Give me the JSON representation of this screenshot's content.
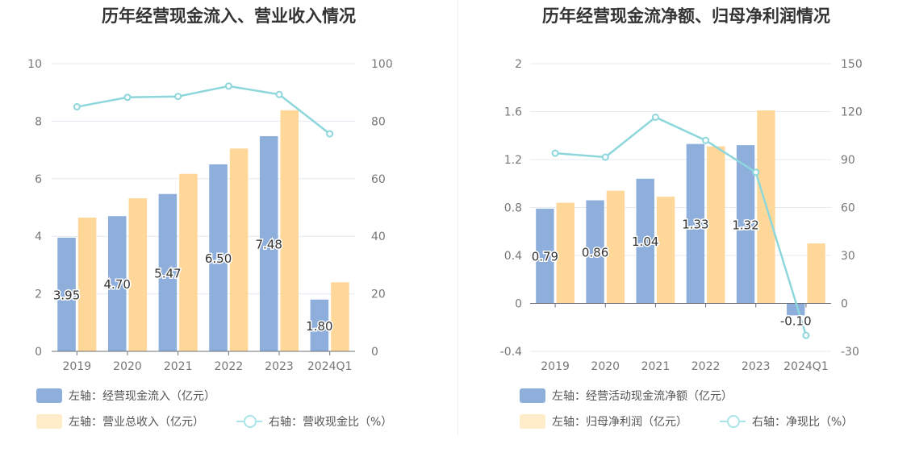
{
  "colors": {
    "bar_primary": "#8eaedc",
    "bar_secondary": "#ffd899",
    "line": "#8dd7dc",
    "legend_secondary": "#ffecc8",
    "legend_line": "#a9e4e9"
  },
  "chart_data": [
    {
      "type": "bar",
      "title": "历年经营现金流入、营业收入情况",
      "categories": [
        "2019",
        "2020",
        "2021",
        "2022",
        "2023",
        "2024Q1"
      ],
      "left_axis": {
        "min": 0,
        "max": 10,
        "ticks": [
          "0",
          "2",
          "4",
          "6",
          "8",
          "10"
        ]
      },
      "right_axis": {
        "min": 0,
        "max": 100,
        "ticks": [
          "0",
          "20",
          "40",
          "60",
          "80",
          "100"
        ]
      },
      "series": [
        {
          "name": "左轴：经营现金流入（亿元）",
          "axis": "left",
          "kind": "bar",
          "values": [
            3.95,
            4.7,
            5.47,
            6.5,
            7.48,
            1.8
          ],
          "labels": [
            "3.95",
            "4.70",
            "5.47",
            "6.50",
            "7.48",
            "1.80"
          ]
        },
        {
          "name": "左轴：营业总收入（亿元）",
          "axis": "left",
          "kind": "bar",
          "values": [
            4.65,
            5.32,
            6.17,
            7.05,
            8.38,
            2.4
          ]
        },
        {
          "name": "右轴：营收现金比（%）",
          "axis": "right",
          "kind": "line",
          "values": [
            85.0,
            88.3,
            88.6,
            92.2,
            89.3,
            75.6
          ]
        }
      ],
      "grid": true
    },
    {
      "type": "bar",
      "title": "历年经营现金流净额、归母净利润情况",
      "categories": [
        "2019",
        "2020",
        "2021",
        "2022",
        "2023",
        "2024Q1"
      ],
      "left_axis": {
        "min": -0.4,
        "max": 2,
        "ticks": [
          "-0.4",
          "0",
          "0.4",
          "0.8",
          "1.2",
          "1.6",
          "2"
        ]
      },
      "right_axis": {
        "min": -30,
        "max": 150,
        "ticks": [
          "-30",
          "0",
          "30",
          "60",
          "90",
          "120",
          "150"
        ]
      },
      "series": [
        {
          "name": "左轴：经营活动现金流净额（亿元）",
          "axis": "left",
          "kind": "bar",
          "values": [
            0.79,
            0.86,
            1.04,
            1.33,
            1.32,
            -0.1
          ],
          "labels": [
            "0.79",
            "0.86",
            "1.04",
            "1.33",
            "1.32",
            "-0.10"
          ]
        },
        {
          "name": "左轴：归母净利润（亿元）",
          "axis": "left",
          "kind": "bar",
          "values": [
            0.84,
            0.94,
            0.89,
            1.31,
            1.61,
            0.5
          ]
        },
        {
          "name": "右轴：净现比（%）",
          "axis": "right",
          "kind": "line",
          "values": [
            94.0,
            91.5,
            116.5,
            102.0,
            82.0,
            -20.0
          ]
        }
      ],
      "grid": true
    }
  ]
}
